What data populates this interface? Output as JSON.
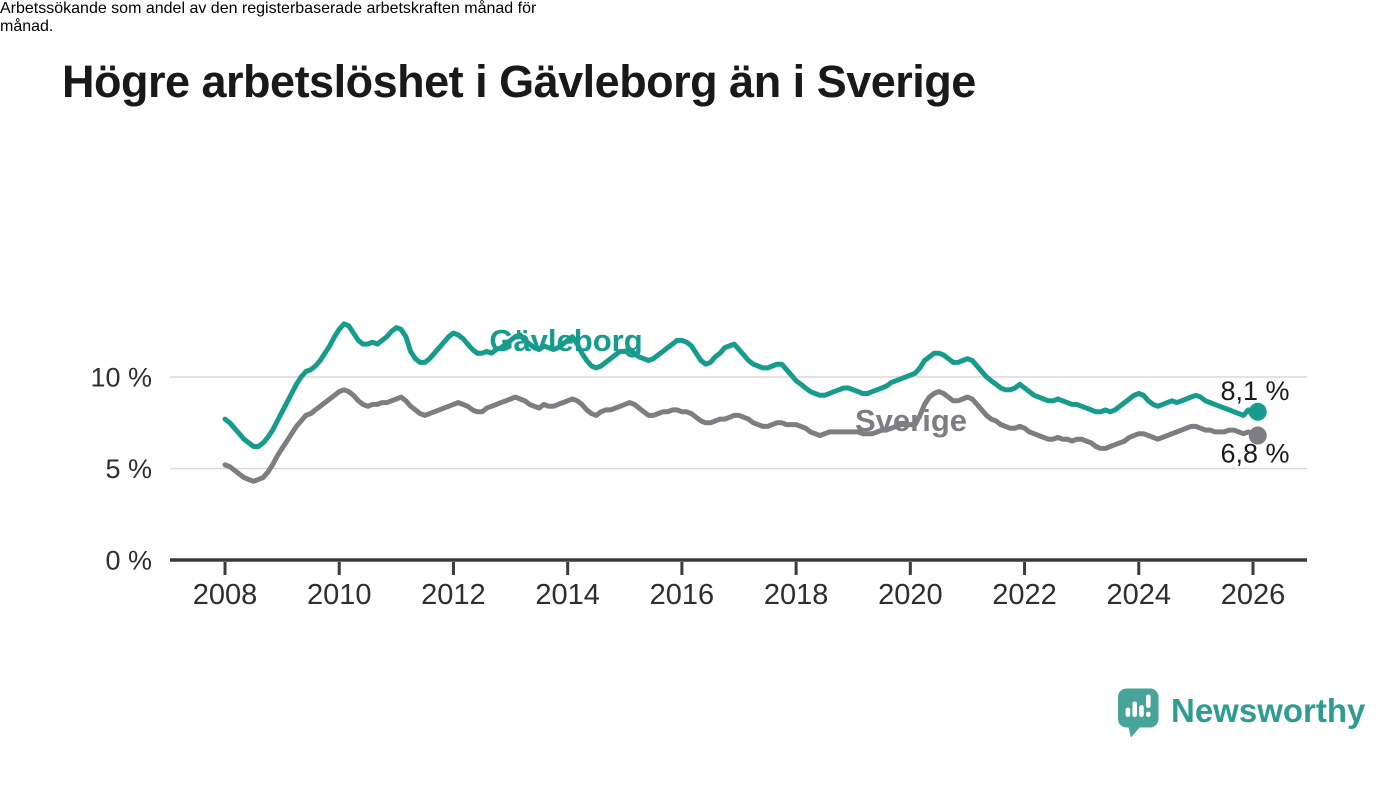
{
  "meta": {
    "graphic_type": "statistical news graphic"
  },
  "chart_data": {
    "type": "line",
    "title": "Högre arbetslöshet i Gävleborg än i Sverige",
    "subtitle": "Arbetssökande som andel av den registerbaserade arbetskraften månad för månad.",
    "subtitle_lines": [
      "Arbetssökande som andel av den registerbaserade arbetskraften månad för",
      "månad."
    ],
    "unit": "%",
    "x_start": "2008-01",
    "x_end": "2026-02",
    "x_interval": "month",
    "x_ticks": [
      2008,
      2010,
      2012,
      2014,
      2016,
      2018,
      2020,
      2022,
      2024,
      2026
    ],
    "y_ticks": {
      "values": [
        0,
        5,
        10
      ],
      "labels": [
        "0 %",
        "5 %",
        "10 %"
      ]
    },
    "ylim": [
      0,
      14
    ],
    "grid": "horizontal only",
    "legend": "inline series labels",
    "series": [
      {
        "id": "gavleborg",
        "name": "Gävleborg",
        "color": "#169b8d",
        "end_label": "8,1 %",
        "end_value": 8.1,
        "values": [
          7.7,
          7.5,
          7.2,
          6.9,
          6.6,
          6.4,
          6.2,
          6.2,
          6.4,
          6.7,
          7.1,
          7.6,
          8.1,
          8.6,
          9.1,
          9.6,
          10.0,
          10.3,
          10.4,
          10.6,
          10.9,
          11.3,
          11.7,
          12.2,
          12.6,
          12.9,
          12.8,
          12.4,
          12.0,
          11.8,
          11.8,
          11.9,
          11.8,
          12.0,
          12.2,
          12.5,
          12.7,
          12.6,
          12.2,
          11.4,
          11.0,
          10.8,
          10.8,
          11.0,
          11.3,
          11.6,
          11.9,
          12.2,
          12.4,
          12.3,
          12.1,
          11.8,
          11.5,
          11.3,
          11.3,
          11.4,
          11.3,
          11.5,
          11.6,
          11.8,
          12.0,
          12.2,
          12.3,
          12.0,
          11.8,
          11.6,
          11.5,
          11.7,
          11.6,
          11.5,
          11.6,
          11.8,
          12.0,
          12.2,
          11.8,
          11.3,
          10.9,
          10.6,
          10.5,
          10.6,
          10.8,
          11.0,
          11.2,
          11.4,
          11.4,
          11.5,
          11.3,
          11.1,
          11.0,
          10.9,
          11.0,
          11.2,
          11.4,
          11.6,
          11.8,
          12.0,
          12.0,
          11.9,
          11.7,
          11.3,
          10.9,
          10.7,
          10.8,
          11.1,
          11.3,
          11.6,
          11.7,
          11.8,
          11.5,
          11.2,
          10.9,
          10.7,
          10.6,
          10.5,
          10.5,
          10.6,
          10.7,
          10.7,
          10.4,
          10.1,
          9.8,
          9.6,
          9.4,
          9.2,
          9.1,
          9.0,
          9.0,
          9.1,
          9.2,
          9.3,
          9.4,
          9.4,
          9.3,
          9.2,
          9.1,
          9.1,
          9.2,
          9.3,
          9.4,
          9.5,
          9.7,
          9.8,
          9.9,
          10.0,
          10.1,
          10.2,
          10.5,
          10.9,
          11.1,
          11.3,
          11.3,
          11.2,
          11.0,
          10.8,
          10.8,
          10.9,
          11.0,
          10.9,
          10.6,
          10.3,
          10.0,
          9.8,
          9.6,
          9.4,
          9.3,
          9.3,
          9.4,
          9.6,
          9.4,
          9.2,
          9.0,
          8.9,
          8.8,
          8.7,
          8.7,
          8.8,
          8.7,
          8.6,
          8.5,
          8.5,
          8.4,
          8.3,
          8.2,
          8.1,
          8.1,
          8.2,
          8.1,
          8.2,
          8.4,
          8.6,
          8.8,
          9.0,
          9.1,
          9.0,
          8.7,
          8.5,
          8.4,
          8.5,
          8.6,
          8.7,
          8.6,
          8.7,
          8.8,
          8.9,
          9.0,
          8.9,
          8.7,
          8.6,
          8.5,
          8.4,
          8.3,
          8.2,
          8.1,
          8.0,
          7.9,
          8.2,
          7.9,
          8.1
        ]
      },
      {
        "id": "sverige",
        "name": "Sverige",
        "color": "#7d7d82",
        "end_label": "6,8 %",
        "end_value": 6.8,
        "values": [
          5.2,
          5.1,
          4.9,
          4.7,
          4.5,
          4.4,
          4.3,
          4.4,
          4.5,
          4.8,
          5.2,
          5.7,
          6.1,
          6.5,
          6.9,
          7.3,
          7.6,
          7.9,
          8.0,
          8.2,
          8.4,
          8.6,
          8.8,
          9.0,
          9.2,
          9.3,
          9.2,
          9.0,
          8.7,
          8.5,
          8.4,
          8.5,
          8.5,
          8.6,
          8.6,
          8.7,
          8.8,
          8.9,
          8.7,
          8.4,
          8.2,
          8.0,
          7.9,
          8.0,
          8.1,
          8.2,
          8.3,
          8.4,
          8.5,
          8.6,
          8.5,
          8.4,
          8.2,
          8.1,
          8.1,
          8.3,
          8.4,
          8.5,
          8.6,
          8.7,
          8.8,
          8.9,
          8.8,
          8.7,
          8.5,
          8.4,
          8.3,
          8.5,
          8.4,
          8.4,
          8.5,
          8.6,
          8.7,
          8.8,
          8.7,
          8.5,
          8.2,
          8.0,
          7.9,
          8.1,
          8.2,
          8.2,
          8.3,
          8.4,
          8.5,
          8.6,
          8.5,
          8.3,
          8.1,
          7.9,
          7.9,
          8.0,
          8.1,
          8.1,
          8.2,
          8.2,
          8.1,
          8.1,
          8.0,
          7.8,
          7.6,
          7.5,
          7.5,
          7.6,
          7.7,
          7.7,
          7.8,
          7.9,
          7.9,
          7.8,
          7.7,
          7.5,
          7.4,
          7.3,
          7.3,
          7.4,
          7.5,
          7.5,
          7.4,
          7.4,
          7.4,
          7.3,
          7.2,
          7.0,
          6.9,
          6.8,
          6.9,
          7.0,
          7.0,
          7.0,
          7.0,
          7.0,
          7.0,
          7.0,
          6.9,
          6.9,
          6.9,
          7.0,
          7.1,
          7.1,
          7.2,
          7.3,
          7.4,
          7.4,
          7.4,
          7.4,
          7.9,
          8.5,
          8.9,
          9.1,
          9.2,
          9.1,
          8.9,
          8.7,
          8.7,
          8.8,
          8.9,
          8.8,
          8.5,
          8.2,
          7.9,
          7.7,
          7.6,
          7.4,
          7.3,
          7.2,
          7.2,
          7.3,
          7.2,
          7.0,
          6.9,
          6.8,
          6.7,
          6.6,
          6.6,
          6.7,
          6.6,
          6.6,
          6.5,
          6.6,
          6.6,
          6.5,
          6.4,
          6.2,
          6.1,
          6.1,
          6.2,
          6.3,
          6.4,
          6.5,
          6.7,
          6.8,
          6.9,
          6.9,
          6.8,
          6.7,
          6.6,
          6.7,
          6.8,
          6.9,
          7.0,
          7.1,
          7.2,
          7.3,
          7.3,
          7.2,
          7.1,
          7.1,
          7.0,
          7.0,
          7.0,
          7.1,
          7.1,
          7.0,
          6.9,
          7.0,
          6.9,
          6.8
        ]
      }
    ]
  },
  "brand": {
    "logo_text": "Newsworthy",
    "logo_color": "#2f9c93",
    "logo_icon_color": "#46a49b",
    "logo_icon": "newsworthy-speech-bubble-bar-chart-icon"
  }
}
